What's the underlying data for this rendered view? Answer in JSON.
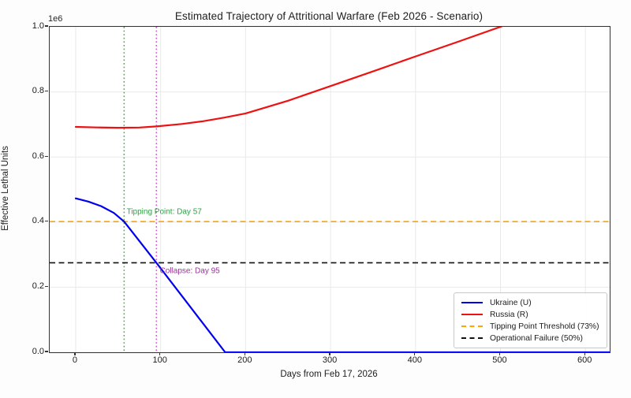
{
  "chart_data": {
    "type": "line",
    "title": "Estimated Trajectory of Attritional Warfare (Feb 2026 - Scenario)",
    "xlabel": "Days from Feb 17, 2026",
    "ylabel": "Effective Lethal Units",
    "y_offset_label": "1e6",
    "xlim": [
      -30.6,
      628.6
    ],
    "ylim": [
      0,
      1000000
    ],
    "grid": true,
    "grid_color": "#e9e9e9",
    "legend_position": "lower right",
    "xticks": {
      "values": [
        0,
        100,
        200,
        300,
        400,
        500,
        600
      ],
      "labels": [
        "0",
        "100",
        "200",
        "300",
        "400",
        "500",
        "600"
      ]
    },
    "yticks": {
      "values": [
        0,
        200000,
        400000,
        600000,
        800000,
        1000000
      ],
      "labels": [
        "0.0",
        "0.2",
        "0.4",
        "0.6",
        "0.8",
        "1.0"
      ]
    },
    "series": [
      {
        "name": "Ukraine (U)",
        "color": "#0000ee",
        "line_style": "solid",
        "points": [
          [
            0,
            473000
          ],
          [
            15,
            463000
          ],
          [
            30,
            449000
          ],
          [
            45,
            428000
          ],
          [
            57,
            401500
          ],
          [
            95,
            275000
          ],
          [
            176,
            0
          ],
          [
            629,
            0
          ]
        ]
      },
      {
        "name": "Russia (R)",
        "color": "#ee1111",
        "line_style": "solid",
        "points": [
          [
            0,
            692500
          ],
          [
            25,
            690800
          ],
          [
            50,
            689800
          ],
          [
            75,
            690500
          ],
          [
            95,
            694000
          ],
          [
            125,
            701500
          ],
          [
            150,
            710000
          ],
          [
            175,
            721000
          ],
          [
            200,
            734000
          ],
          [
            250,
            773000
          ],
          [
            300,
            818000
          ],
          [
            350,
            863000
          ],
          [
            400,
            909000
          ],
          [
            450,
            954000
          ],
          [
            500,
            1000000
          ],
          [
            512,
            1012000
          ]
        ]
      }
    ],
    "hlines": [
      {
        "name": "Tipping Point Threshold (73%)",
        "y": 401500,
        "color": "#ffa500",
        "style": "dashed"
      },
      {
        "name": "Operational Failure (50%)",
        "y": 275000,
        "color": "#111111",
        "style": "dashed"
      }
    ],
    "vlines": [
      {
        "name": "tipping-point-day-57",
        "x": 57,
        "color": "#4da64d",
        "style": "dotted"
      },
      {
        "name": "collapse-day-95",
        "x": 95,
        "color": "#d44fd4",
        "style": "dotted"
      }
    ],
    "annotations": [
      {
        "text": "Tipping Point: Day 57",
        "x": 60,
        "y": 430000,
        "color": "#2f9e44"
      },
      {
        "text": "Collapse: Day 95",
        "x": 99,
        "y": 250000,
        "color": "#993399"
      }
    ]
  },
  "legend": {
    "entries": [
      {
        "label": "Ukraine (U)",
        "color": "#0000ee",
        "style": "solid"
      },
      {
        "label": "Russia (R)",
        "color": "#ee1111",
        "style": "solid"
      },
      {
        "label": "Tipping Point Threshold (73%)",
        "color": "#ffa500",
        "style": "dashed"
      },
      {
        "label": "Operational Failure (50%)",
        "color": "#111111",
        "style": "dashed"
      }
    ]
  }
}
